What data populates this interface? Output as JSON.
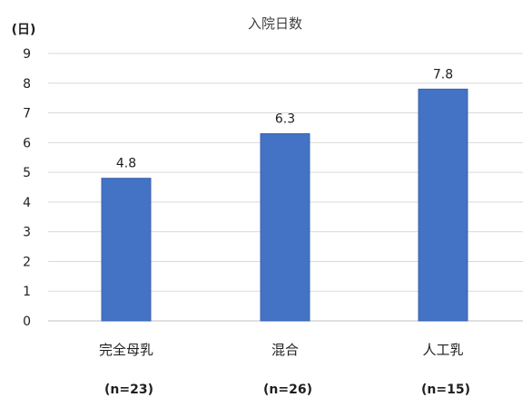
{
  "chart_data": {
    "type": "bar",
    "title": "入院日数",
    "unit_label": "(日)",
    "categories": [
      "完全母乳",
      "混合",
      "人工乳"
    ],
    "sample_sizes": [
      "(n=23)",
      "(n=26)",
      "(n=15)"
    ],
    "values": [
      4.8,
      6.3,
      7.8
    ],
    "data_labels": [
      "4.8",
      "6.3",
      "7.8"
    ],
    "ylim": [
      0,
      9
    ],
    "yticks": [
      0,
      1,
      2,
      3,
      4,
      5,
      6,
      7,
      8,
      9
    ],
    "grid": true,
    "legend": "none",
    "colors": {
      "bar": "#4472C4",
      "bar_edge": "#3A64AE"
    }
  }
}
